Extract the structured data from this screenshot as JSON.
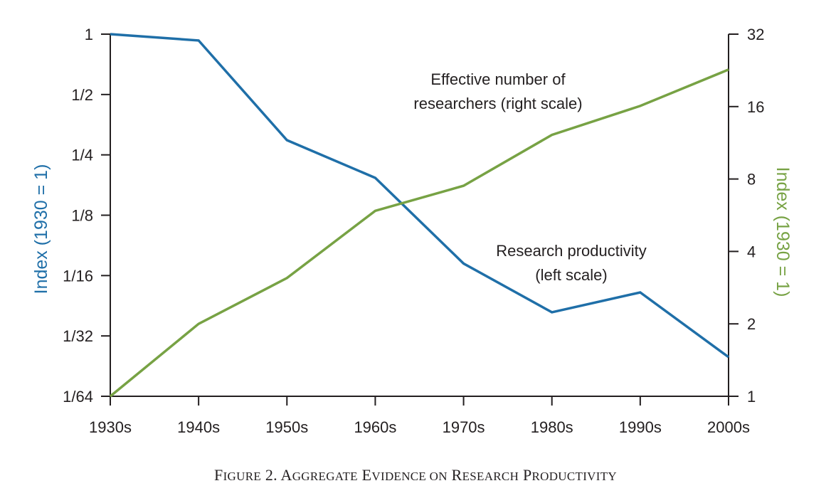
{
  "chart_data": {
    "type": "line",
    "title": "Figure 2. Aggregate Evidence on Research Productivity",
    "caption_parts": [
      {
        "text": "F",
        "small": false
      },
      {
        "text": "IGURE",
        "small": true
      },
      {
        "text": " 2. A",
        "small": false
      },
      {
        "text": "GGREGATE",
        "small": true
      },
      {
        "text": " E",
        "small": false
      },
      {
        "text": "VIDENCE ON",
        "small": true
      },
      {
        "text": " R",
        "small": false
      },
      {
        "text": "ESEARCH",
        "small": true
      },
      {
        "text": " P",
        "small": false
      },
      {
        "text": "RODUCTIVITY",
        "small": true
      }
    ],
    "categories": [
      "1930s",
      "1940s",
      "1950s",
      "1960s",
      "1970s",
      "1980s",
      "1990s",
      "2000s"
    ],
    "xlabel": "",
    "left_axis": {
      "label": "Index (1930 = 1)",
      "scale": "log2",
      "range": [
        0.015625,
        1
      ],
      "ticks": [
        1,
        0.5,
        0.25,
        0.125,
        0.0625,
        0.03125,
        0.015625
      ],
      "tick_labels": [
        "1",
        "1/2",
        "1/4",
        "1/8",
        "1/16",
        "1/32",
        "1/64"
      ],
      "color": "#1f6fa8"
    },
    "right_axis": {
      "label": "Index (1930 = 1)",
      "scale": "log2",
      "range": [
        1,
        32
      ],
      "ticks": [
        32,
        16,
        8,
        4,
        2,
        1
      ],
      "tick_labels": [
        "32",
        "16",
        "8",
        "4",
        "2",
        "1"
      ],
      "color": "#77a244"
    },
    "series": [
      {
        "name": "Research productivity (left scale)",
        "axis": "left",
        "color": "#1f6fa8",
        "values": [
          1.0,
          0.93,
          0.296,
          0.192,
          0.0718,
          0.041,
          0.0515,
          0.0245
        ],
        "annotation": [
          "Research productivity",
          "(left scale)"
        ]
      },
      {
        "name": "Effective number of researchers (right scale)",
        "axis": "right",
        "color": "#77a244",
        "values": [
          1.0,
          2.0,
          3.1,
          5.9,
          7.5,
          12.2,
          16.1,
          22.8
        ],
        "annotation": [
          "Effective number of",
          "researchers (right scale)"
        ]
      }
    ],
    "grid": false,
    "legend": "none (inline annotations)"
  }
}
